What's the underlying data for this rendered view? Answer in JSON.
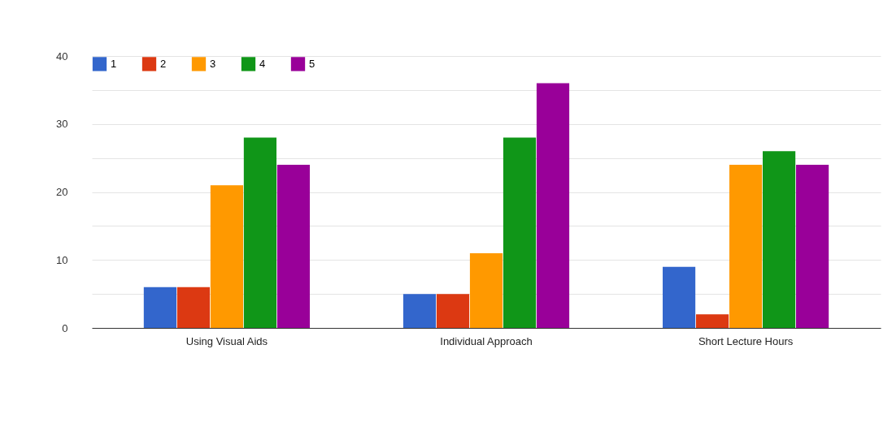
{
  "chart_data": {
    "type": "bar",
    "categories": [
      "Using Visual Aids",
      "Individual Approach",
      "Short Lecture Hours"
    ],
    "series": [
      {
        "name": "1",
        "color": "#3366cc",
        "values": [
          6,
          5,
          9
        ]
      },
      {
        "name": "2",
        "color": "#dc3912",
        "values": [
          6,
          5,
          2
        ]
      },
      {
        "name": "3",
        "color": "#ff9900",
        "values": [
          21,
          11,
          24
        ]
      },
      {
        "name": "4",
        "color": "#109618",
        "values": [
          28,
          28,
          26
        ]
      },
      {
        "name": "5",
        "color": "#990099",
        "values": [
          24,
          36,
          24
        ]
      }
    ],
    "ylim": [
      0,
      40
    ],
    "yticks": [
      0,
      {
        "value": 5,
        "label": null
      },
      10,
      {
        "value": 15,
        "label": null
      },
      20,
      {
        "value": 25,
        "label": null
      },
      30,
      {
        "value": 35,
        "label": null
      },
      40
    ],
    "grid": true,
    "legend": "top left"
  }
}
